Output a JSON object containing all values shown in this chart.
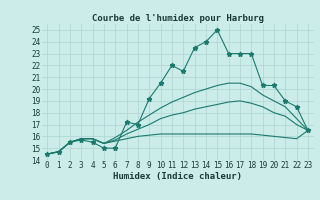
{
  "title": "Courbe de l'humidex pour Harburg",
  "xlabel": "Humidex (Indice chaleur)",
  "background_color": "#ccecea",
  "grid_color": "#b0d8d5",
  "line_color": "#1a7a6e",
  "xlim_min": -0.5,
  "xlim_max": 23.5,
  "ylim_min": 14,
  "ylim_max": 25.5,
  "xticks": [
    0,
    1,
    2,
    3,
    4,
    5,
    6,
    7,
    8,
    9,
    10,
    11,
    12,
    13,
    14,
    15,
    16,
    17,
    18,
    19,
    20,
    21,
    22,
    23
  ],
  "yticks": [
    14,
    15,
    16,
    17,
    18,
    19,
    20,
    21,
    22,
    23,
    24,
    25
  ],
  "line1_x": [
    0,
    1,
    2,
    3,
    4,
    5,
    6,
    7,
    8,
    9,
    10,
    11,
    12,
    13,
    14,
    15,
    16,
    17,
    18,
    19,
    20,
    21,
    22,
    23
  ],
  "line1_y": [
    14.5,
    14.7,
    15.5,
    15.7,
    15.5,
    15.0,
    15.0,
    17.2,
    17.0,
    19.2,
    20.5,
    22.0,
    21.5,
    23.5,
    24.0,
    25.0,
    23.0,
    23.0,
    23.0,
    20.3,
    20.3,
    19.0,
    18.5,
    16.5
  ],
  "line2_x": [
    0,
    1,
    2,
    3,
    4,
    5,
    6,
    7,
    8,
    9,
    10,
    11,
    12,
    13,
    14,
    15,
    16,
    17,
    18,
    19,
    20,
    21,
    22,
    23
  ],
  "line2_y": [
    14.5,
    14.7,
    15.5,
    15.8,
    15.8,
    15.4,
    15.9,
    16.5,
    17.2,
    17.8,
    18.4,
    18.9,
    19.3,
    19.7,
    20.0,
    20.3,
    20.5,
    20.5,
    20.2,
    19.5,
    19.0,
    18.5,
    17.5,
    16.5
  ],
  "line3_x": [
    0,
    1,
    2,
    3,
    4,
    5,
    6,
    7,
    8,
    9,
    10,
    11,
    12,
    13,
    14,
    15,
    16,
    17,
    18,
    19,
    20,
    21,
    22,
    23
  ],
  "line3_y": [
    14.5,
    14.7,
    15.5,
    15.8,
    15.8,
    15.4,
    15.7,
    16.2,
    16.6,
    17.0,
    17.5,
    17.8,
    18.0,
    18.3,
    18.5,
    18.7,
    18.9,
    19.0,
    18.8,
    18.5,
    18.0,
    17.7,
    17.0,
    16.5
  ],
  "line4_x": [
    0,
    1,
    2,
    3,
    4,
    5,
    6,
    7,
    8,
    9,
    10,
    11,
    12,
    13,
    14,
    15,
    16,
    17,
    18,
    19,
    20,
    21,
    22,
    23
  ],
  "line4_y": [
    14.5,
    14.7,
    15.5,
    15.8,
    15.8,
    15.4,
    15.6,
    15.8,
    16.0,
    16.1,
    16.2,
    16.2,
    16.2,
    16.2,
    16.2,
    16.2,
    16.2,
    16.2,
    16.2,
    16.1,
    16.0,
    15.9,
    15.8,
    16.5
  ],
  "title_fontsize": 6.5,
  "xlabel_fontsize": 6.5,
  "tick_fontsize": 5.5
}
